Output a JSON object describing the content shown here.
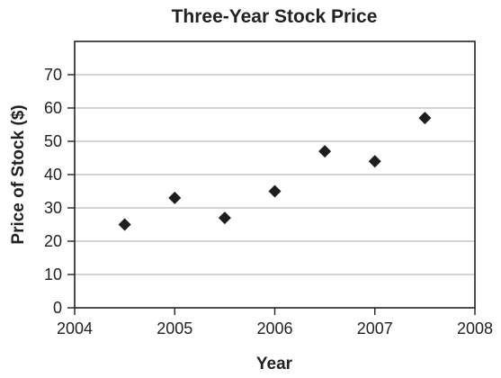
{
  "chart_data": {
    "type": "scatter",
    "title": "Three-Year Stock Price",
    "xlabel": "Year",
    "ylabel": "Price of Stock ($)",
    "xlim": [
      2004,
      2008
    ],
    "ylim": [
      0,
      80
    ],
    "x_ticks": [
      2004,
      2005,
      2006,
      2007,
      2008
    ],
    "y_ticks": [
      0,
      10,
      20,
      30,
      40,
      50,
      60,
      70
    ],
    "x_tick_labels": [
      "2004",
      "2005",
      "2006",
      "2007",
      "2008"
    ],
    "y_tick_labels": [
      "0",
      "10",
      "20",
      "30",
      "40",
      "50",
      "60",
      "70"
    ],
    "grid": "horizontal",
    "marker": "diamond",
    "points": [
      {
        "x": 2004.5,
        "y": 25
      },
      {
        "x": 2005.0,
        "y": 33
      },
      {
        "x": 2005.5,
        "y": 27
      },
      {
        "x": 2006.0,
        "y": 35
      },
      {
        "x": 2006.5,
        "y": 47
      },
      {
        "x": 2007.0,
        "y": 44
      },
      {
        "x": 2007.5,
        "y": 57
      }
    ],
    "colors": {
      "marker": "#1e1e1e",
      "grid": "#a9a9a9",
      "axis": "#222222"
    }
  }
}
